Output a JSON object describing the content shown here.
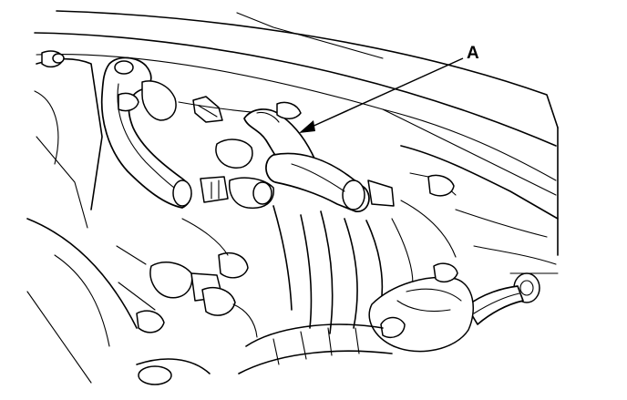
{
  "diagram": {
    "callouts": [
      {
        "label": "A"
      }
    ]
  }
}
